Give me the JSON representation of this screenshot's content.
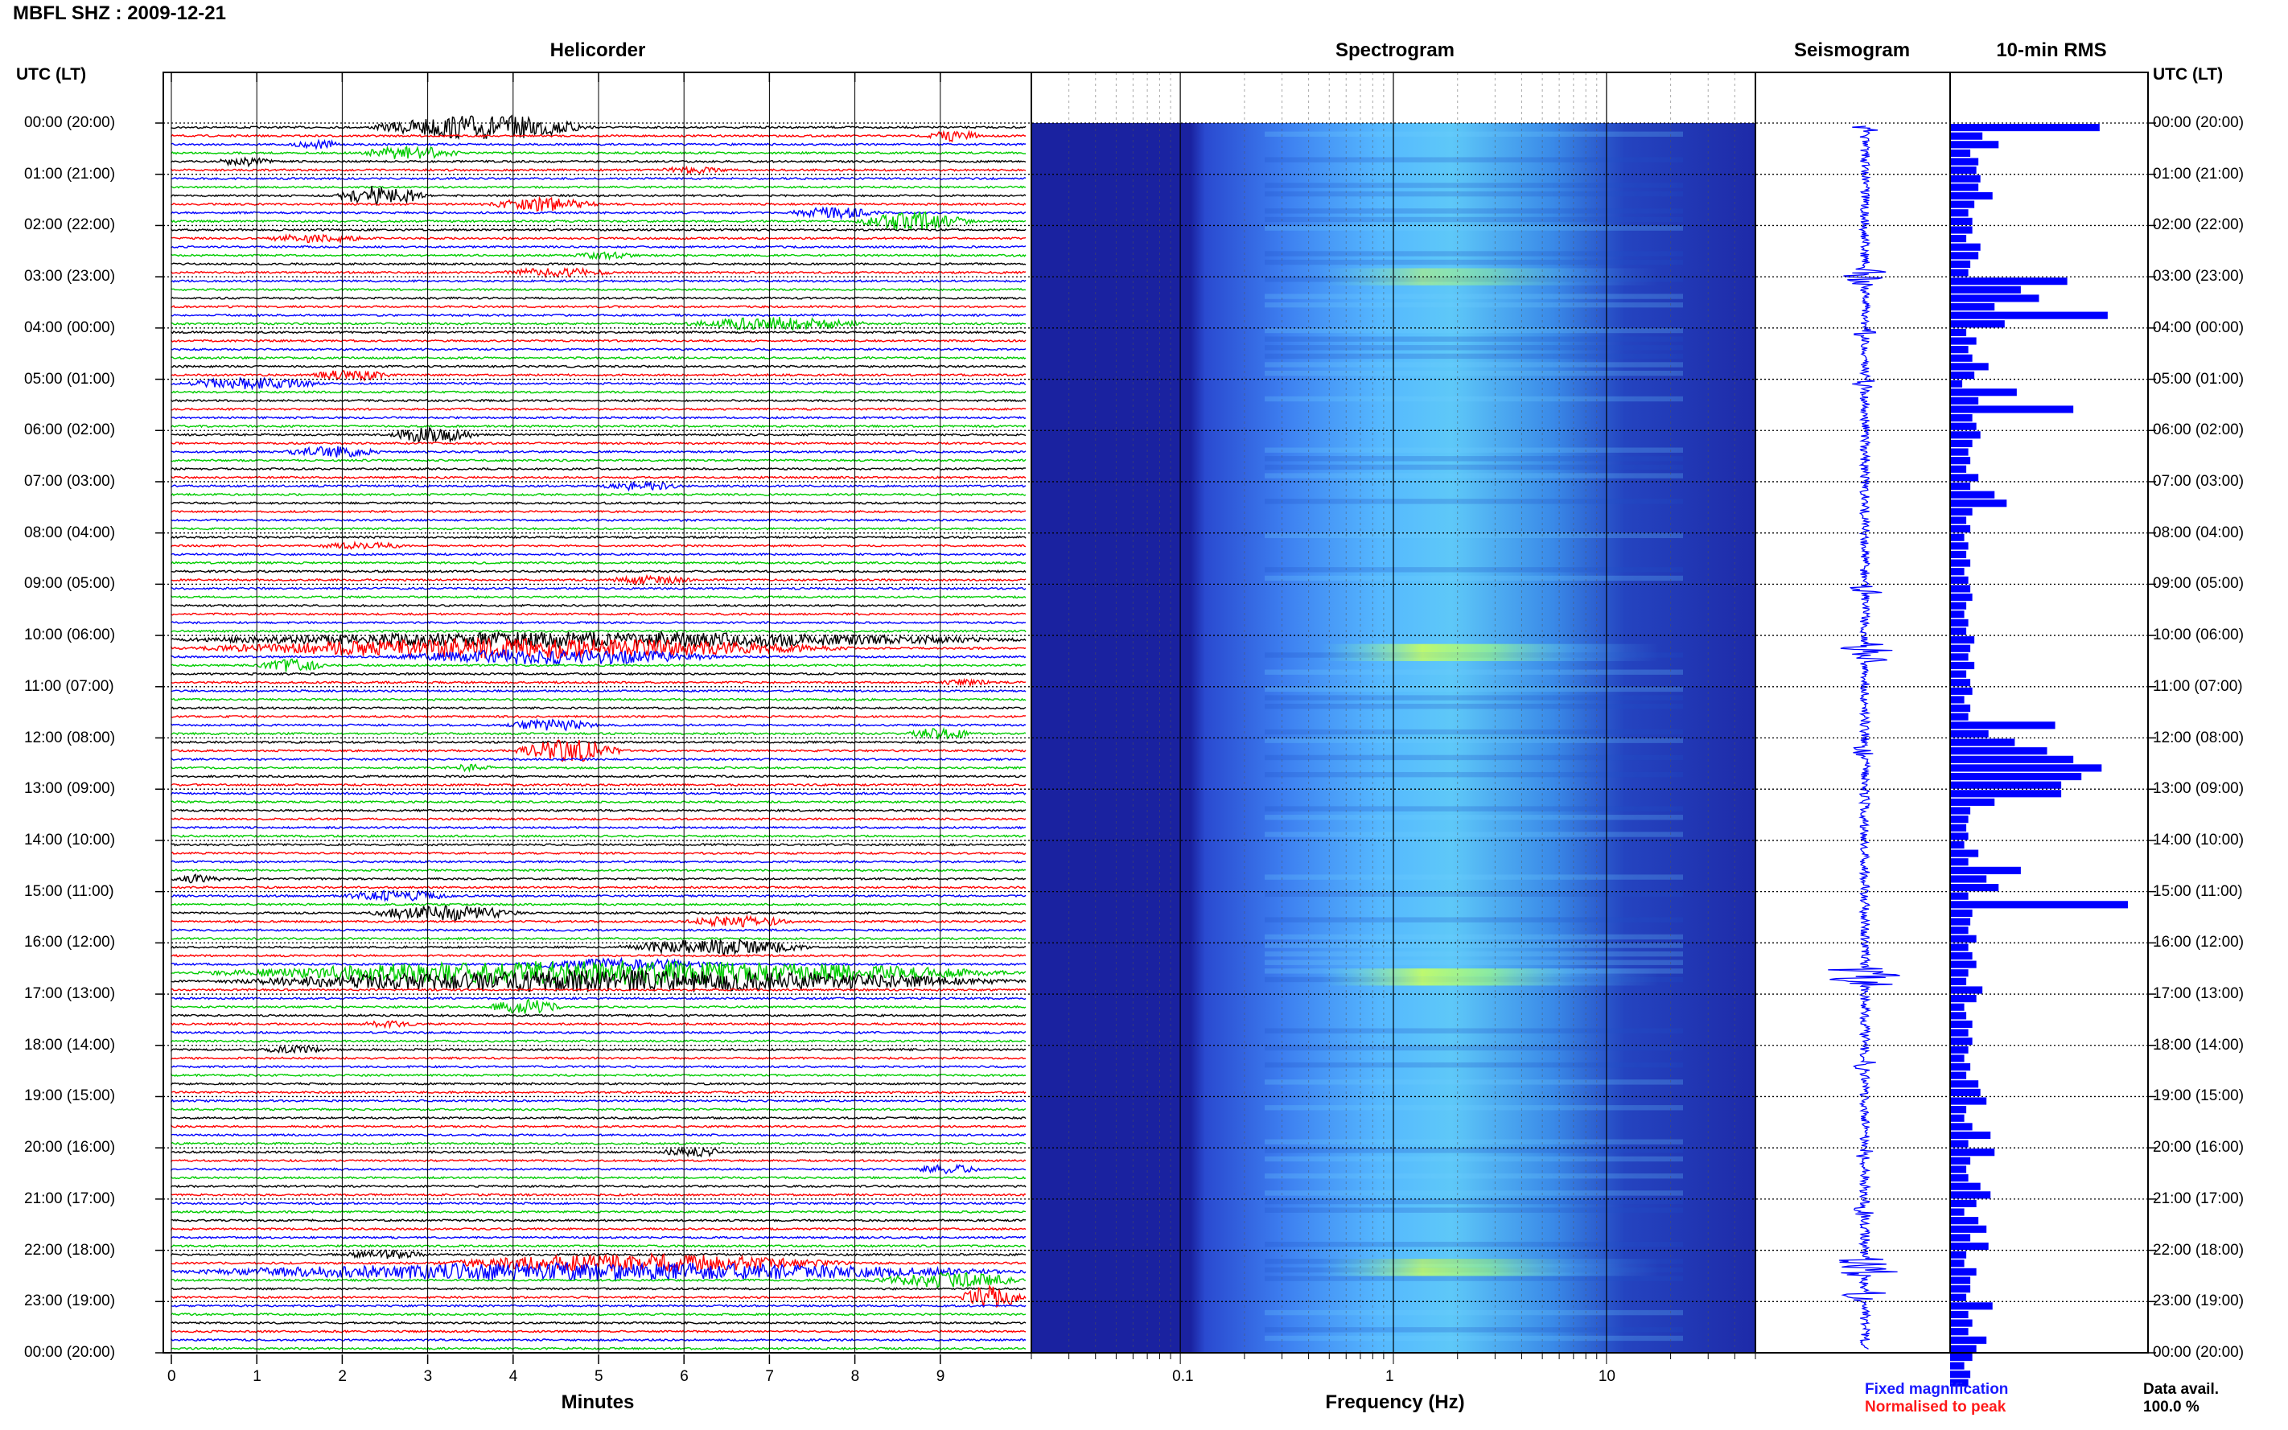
{
  "title": "MBFL SHZ : 2009-12-21",
  "panels": {
    "helicorder": "Helicorder",
    "spectrogram": "Spectrogram",
    "seismogram": "Seismogram",
    "rms": "10-min RMS"
  },
  "axis_corner_left": "UTC (LT)",
  "axis_corner_right": "UTC (LT)",
  "time_labels": [
    "00:00 (20:00)",
    "01:00 (21:00)",
    "02:00 (22:00)",
    "03:00 (23:00)",
    "04:00 (00:00)",
    "05:00 (01:00)",
    "06:00 (02:00)",
    "07:00 (03:00)",
    "08:00 (04:00)",
    "09:00 (05:00)",
    "10:00 (06:00)",
    "11:00 (07:00)",
    "12:00 (08:00)",
    "13:00 (09:00)",
    "14:00 (10:00)",
    "15:00 (11:00)",
    "16:00 (12:00)",
    "17:00 (13:00)",
    "18:00 (14:00)",
    "19:00 (15:00)",
    "20:00 (16:00)",
    "21:00 (17:00)",
    "22:00 (18:00)",
    "23:00 (19:00)",
    "00:00 (20:00)"
  ],
  "notes": {
    "fixed": "Fixed magnification",
    "normalised": "Normalised to peak",
    "data_avail_label": "Data avail.",
    "data_avail_value": "100.0 %"
  },
  "colors": {
    "trace_cycle": [
      "#000000",
      "#ff0000",
      "#0000ff",
      "#00cc00"
    ],
    "seismogram": "#0000ff",
    "rms_bar": "#0000ff",
    "spectrogram_background": "#1a2aa8"
  },
  "chart_data": [
    {
      "type": "line",
      "name": "helicorder",
      "xlabel": "Minutes",
      "x_ticks": [
        "0",
        "1",
        "2",
        "3",
        "4",
        "5",
        "6",
        "7",
        "8",
        "9"
      ],
      "xlim": [
        0,
        10
      ],
      "rows_per_hour": 6,
      "hours": 24,
      "events": [
        {
          "row": 0,
          "start": 2.3,
          "end": 5.0,
          "amp": 1.0
        },
        {
          "row": 1,
          "start": 8.8,
          "end": 9.5,
          "amp": 0.4
        },
        {
          "row": 2,
          "start": 1.4,
          "end": 2.0,
          "amp": 0.3
        },
        {
          "row": 3,
          "start": 2.2,
          "end": 3.4,
          "amp": 0.5
        },
        {
          "row": 4,
          "start": 0.5,
          "end": 1.2,
          "amp": 0.3
        },
        {
          "row": 5,
          "start": 5.7,
          "end": 6.5,
          "amp": 0.2
        },
        {
          "row": 8,
          "start": 1.9,
          "end": 3.0,
          "amp": 0.8
        },
        {
          "row": 9,
          "start": 3.7,
          "end": 5.0,
          "amp": 0.5
        },
        {
          "row": 10,
          "start": 7.2,
          "end": 8.3,
          "amp": 0.4
        },
        {
          "row": 11,
          "start": 8.0,
          "end": 9.4,
          "amp": 0.8
        },
        {
          "row": 13,
          "start": 1.1,
          "end": 2.3,
          "amp": 0.3
        },
        {
          "row": 15,
          "start": 4.7,
          "end": 5.5,
          "amp": 0.2
        },
        {
          "row": 17,
          "start": 3.8,
          "end": 5.2,
          "amp": 0.3
        },
        {
          "row": 23,
          "start": 6.0,
          "end": 8.2,
          "amp": 0.5
        },
        {
          "row": 29,
          "start": 1.6,
          "end": 2.6,
          "amp": 0.4
        },
        {
          "row": 30,
          "start": 0.1,
          "end": 1.8,
          "amp": 0.4
        },
        {
          "row": 36,
          "start": 2.5,
          "end": 3.6,
          "amp": 0.6
        },
        {
          "row": 38,
          "start": 1.3,
          "end": 2.5,
          "amp": 0.4
        },
        {
          "row": 42,
          "start": 5.0,
          "end": 6.0,
          "amp": 0.3
        },
        {
          "row": 49,
          "start": 1.7,
          "end": 2.8,
          "amp": 0.2
        },
        {
          "row": 53,
          "start": 5.1,
          "end": 6.1,
          "amp": 0.3
        },
        {
          "row": 60,
          "start": 0.0,
          "end": 10.0,
          "amp": 0.6
        },
        {
          "row": 61,
          "start": 0.2,
          "end": 8.0,
          "amp": 0.8
        },
        {
          "row": 62,
          "start": 2.5,
          "end": 6.5,
          "amp": 0.6
        },
        {
          "row": 63,
          "start": 1.0,
          "end": 1.8,
          "amp": 0.5
        },
        {
          "row": 65,
          "start": 9.0,
          "end": 9.6,
          "amp": 0.2
        },
        {
          "row": 70,
          "start": 3.9,
          "end": 5.0,
          "amp": 0.4
        },
        {
          "row": 71,
          "start": 8.6,
          "end": 9.4,
          "amp": 0.4
        },
        {
          "row": 73,
          "start": 4.0,
          "end": 5.3,
          "amp": 0.9
        },
        {
          "row": 75,
          "start": 3.2,
          "end": 3.8,
          "amp": 0.2
        },
        {
          "row": 88,
          "start": 0.0,
          "end": 0.7,
          "amp": 0.3
        },
        {
          "row": 90,
          "start": 2.0,
          "end": 3.3,
          "amp": 0.4
        },
        {
          "row": 92,
          "start": 2.3,
          "end": 4.1,
          "amp": 0.6
        },
        {
          "row": 93,
          "start": 6.0,
          "end": 7.3,
          "amp": 0.4
        },
        {
          "row": 96,
          "start": 5.2,
          "end": 7.5,
          "amp": 0.6
        },
        {
          "row": 98,
          "start": 4.0,
          "end": 6.5,
          "amp": 0.4
        },
        {
          "row": 99,
          "start": 0.3,
          "end": 10.0,
          "amp": 1.0
        },
        {
          "row": 100,
          "start": 0.5,
          "end": 10.0,
          "amp": 0.9
        },
        {
          "row": 103,
          "start": 3.7,
          "end": 4.6,
          "amp": 0.6
        },
        {
          "row": 105,
          "start": 2.2,
          "end": 2.9,
          "amp": 0.2
        },
        {
          "row": 108,
          "start": 1.0,
          "end": 1.9,
          "amp": 0.2
        },
        {
          "row": 120,
          "start": 5.7,
          "end": 6.5,
          "amp": 0.3
        },
        {
          "row": 122,
          "start": 8.7,
          "end": 9.5,
          "amp": 0.3
        },
        {
          "row": 132,
          "start": 2.0,
          "end": 3.0,
          "amp": 0.3
        },
        {
          "row": 133,
          "start": 3.0,
          "end": 8.0,
          "amp": 0.7
        },
        {
          "row": 134,
          "start": 0.0,
          "end": 10.0,
          "amp": 0.7
        },
        {
          "row": 135,
          "start": 8.2,
          "end": 10.0,
          "amp": 0.6
        },
        {
          "row": 137,
          "start": 9.2,
          "end": 10.0,
          "amp": 0.9
        }
      ]
    },
    {
      "type": "heatmap",
      "name": "spectrogram",
      "xlabel": "Frequency (Hz)",
      "x_scale": "log",
      "x_ticks": [
        "0.1",
        "1",
        "10"
      ],
      "xlim": [
        0.02,
        50
      ],
      "high_energy_rows": [
        {
          "row": 17,
          "level": 0.6
        },
        {
          "row": 18,
          "level": 0.6
        },
        {
          "row": 61,
          "level": 1.0
        },
        {
          "row": 62,
          "level": 0.9
        },
        {
          "row": 99,
          "level": 1.0
        },
        {
          "row": 100,
          "level": 0.95
        },
        {
          "row": 133,
          "level": 0.8
        },
        {
          "row": 134,
          "level": 0.9
        }
      ]
    },
    {
      "type": "line",
      "name": "seismogram",
      "bursts": [
        {
          "row": 0,
          "amp": 0.3
        },
        {
          "row": 17,
          "amp": 0.7
        },
        {
          "row": 18,
          "amp": 0.5
        },
        {
          "row": 24,
          "amp": 0.3
        },
        {
          "row": 30,
          "amp": 0.3
        },
        {
          "row": 54,
          "amp": 0.4
        },
        {
          "row": 61,
          "amp": 0.9
        },
        {
          "row": 62,
          "amp": 0.6
        },
        {
          "row": 73,
          "amp": 0.4
        },
        {
          "row": 99,
          "amp": 0.9
        },
        {
          "row": 100,
          "amp": 0.8
        },
        {
          "row": 110,
          "amp": 0.3
        },
        {
          "row": 120,
          "amp": 0.3
        },
        {
          "row": 127,
          "amp": 0.3
        },
        {
          "row": 133,
          "amp": 0.6
        },
        {
          "row": 134,
          "amp": 0.8
        },
        {
          "row": 137,
          "amp": 0.5
        }
      ]
    },
    {
      "type": "bar",
      "name": "rms",
      "orientation": "horizontal",
      "values": [
        148,
        32,
        48,
        20,
        28,
        26,
        30,
        28,
        42,
        24,
        18,
        22,
        22,
        16,
        30,
        28,
        20,
        18,
        116,
        70,
        88,
        44,
        156,
        54,
        16,
        26,
        18,
        22,
        38,
        24,
        12,
        66,
        28,
        122,
        22,
        26,
        30,
        22,
        18,
        20,
        16,
        28,
        20,
        44,
        56,
        22,
        16,
        20,
        14,
        18,
        16,
        20,
        14,
        18,
        20,
        22,
        16,
        14,
        18,
        16,
        24,
        20,
        18,
        24,
        16,
        20,
        22,
        14,
        20,
        18,
        104,
        38,
        64,
        96,
        122,
        150,
        130,
        110,
        110,
        44,
        20,
        18,
        16,
        18,
        14,
        28,
        18,
        70,
        36,
        48,
        18,
        176,
        22,
        20,
        18,
        26,
        18,
        22,
        26,
        18,
        16,
        32,
        26,
        14,
        16,
        22,
        18,
        22,
        18,
        14,
        20,
        16,
        28,
        30,
        36,
        16,
        14,
        22,
        40,
        18,
        44,
        20,
        16,
        18,
        30,
        40,
        26,
        14,
        28,
        36,
        20,
        38,
        16,
        14,
        26,
        20,
        20,
        16,
        42,
        18,
        22,
        18,
        36,
        26,
        22,
        14,
        20,
        18
      ]
    }
  ]
}
